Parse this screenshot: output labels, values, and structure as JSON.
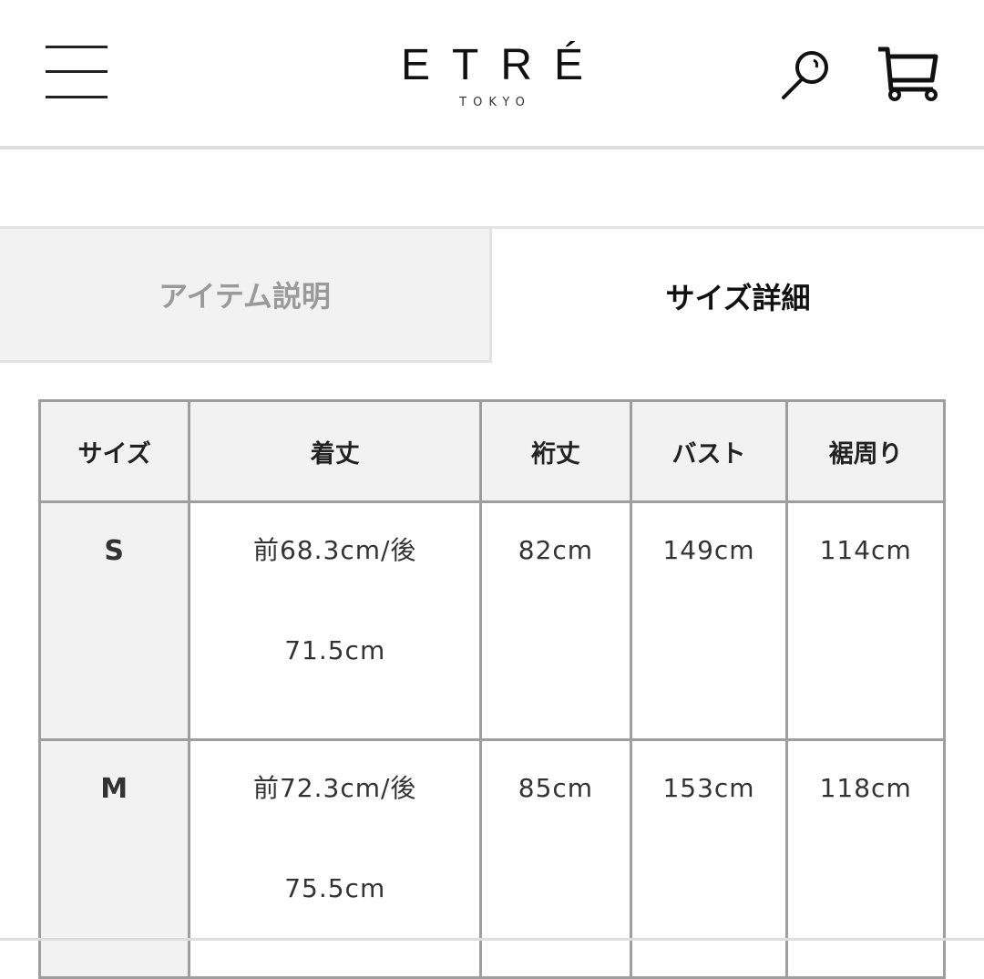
{
  "header": {
    "logo": "ETRÉ",
    "logo_sub": "TOKYO",
    "menu_icon": "hamburger-menu-icon",
    "search_icon": "search-icon",
    "cart_icon": "cart-icon"
  },
  "tabs": [
    {
      "label": "アイテム説明",
      "active": false
    },
    {
      "label": "サイズ詳細",
      "active": true
    }
  ],
  "size_table": {
    "headers": [
      "サイズ",
      "着丈",
      "裄丈",
      "バスト",
      "裾周り"
    ],
    "rows": [
      {
        "size": "S",
        "length": [
          "前68.3cm/後",
          "71.5cm"
        ],
        "sleeve": "82cm",
        "bust": "149cm",
        "hem": "114cm"
      },
      {
        "size": "M",
        "length": [
          "前72.3cm/後",
          "75.5cm"
        ],
        "sleeve": "85cm",
        "bust": "153cm",
        "hem": "118cm"
      }
    ]
  }
}
